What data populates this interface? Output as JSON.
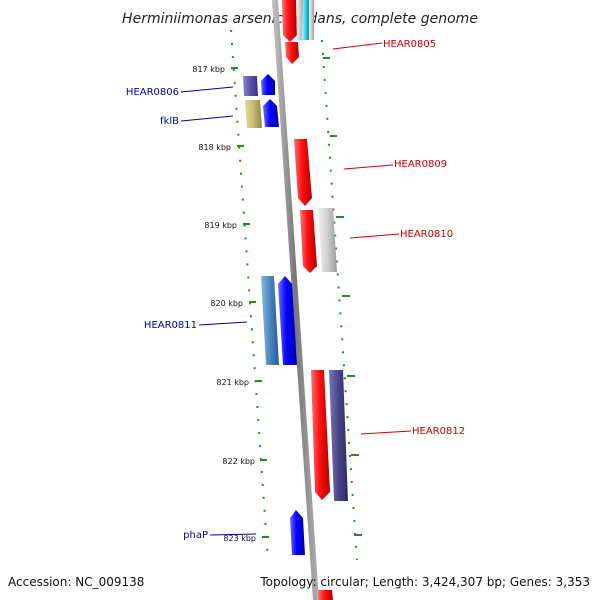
{
  "title": "Herminiimonas arsenicoxydans, complete genome",
  "footer": {
    "accession": "Accession: NC_009138",
    "topology": "Topology: circular; Length: 3,424,307 bp; Genes: 3,353"
  },
  "ticks": [
    "817 kbp",
    "818 kbp",
    "819 kbp",
    "820 kbp",
    "821 kbp",
    "822 kbp",
    "823 kbp"
  ],
  "labels": {
    "hear0805": "HEAR0805",
    "hear0806": "HEAR0806",
    "fklb": "fklB",
    "hear0809": "HEAR0809",
    "hear0810": "HEAR0810",
    "hear0811": "HEAR0811",
    "hear0812": "HEAR0812",
    "phap": "phaP"
  },
  "colors": {
    "forward_label": "#0000aa",
    "reverse_label": "#cc0000",
    "backbone": "#888888",
    "tick_marks": "#2a8a2a"
  }
}
